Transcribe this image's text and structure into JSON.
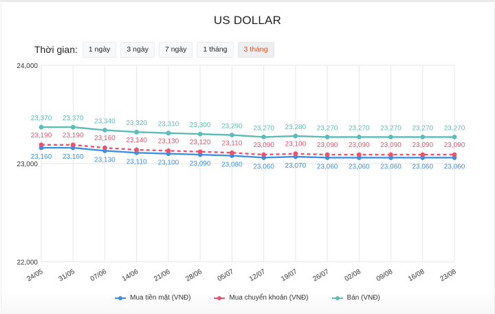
{
  "header": {
    "title": "US DOLLAR"
  },
  "period": {
    "label": "Thời gian:",
    "options": [
      "1 ngày",
      "3 ngày",
      "7 ngày",
      "1 tháng",
      "3 tháng"
    ],
    "active_index": 4
  },
  "colors": {
    "cash": "#3f8fe0",
    "transfer": "#e8536e",
    "sell": "#5bbcb8",
    "active_period": "#d8542a",
    "grid": "#ebebeb"
  },
  "chart_data": {
    "type": "line",
    "title": "US DOLLAR",
    "xlabel": "",
    "ylabel": "",
    "ylim": [
      22000,
      24000
    ],
    "yticks": [
      "22,000",
      "23,000",
      "24,000"
    ],
    "grid": true,
    "legend_position": "bottom",
    "categories": [
      "24/05",
      "31/05",
      "07/06",
      "14/06",
      "21/06",
      "28/06",
      "05/07",
      "12/07",
      "19/07",
      "26/07",
      "02/08",
      "09/08",
      "16/08",
      "23/08"
    ],
    "series": [
      {
        "name": "Mua tiền mặt (VNĐ)",
        "key": "cash",
        "style": "solid",
        "values": [
          23160,
          23160,
          23130,
          23110,
          23100,
          23090,
          23080,
          23060,
          23070,
          23060,
          23060,
          23060,
          23060,
          23060
        ]
      },
      {
        "name": "Mua chuyển khoản (VNĐ)",
        "key": "transfer",
        "style": "dashed",
        "values": [
          23190,
          23190,
          23160,
          23140,
          23130,
          23120,
          23110,
          23090,
          23100,
          23090,
          23090,
          23090,
          23090,
          23090
        ]
      },
      {
        "name": "Bán (VNĐ)",
        "key": "sell",
        "style": "solid",
        "values": [
          23370,
          23370,
          23340,
          23320,
          23310,
          23300,
          23290,
          23270,
          23280,
          23270,
          23270,
          23270,
          23270,
          23270
        ]
      }
    ]
  },
  "legend": {
    "items": [
      "Mua tiền mặt (VNĐ)",
      "Mua chuyển khoản (VNĐ)",
      "Bán (VNĐ)"
    ]
  }
}
